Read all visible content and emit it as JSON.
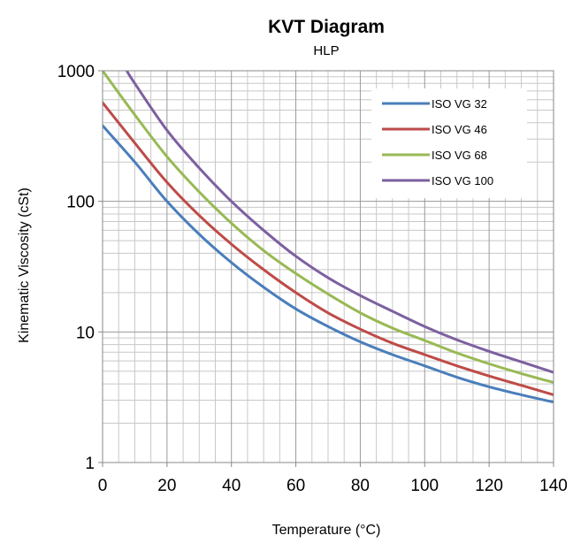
{
  "chart_data": {
    "type": "line",
    "title": "KVT Diagram",
    "subtitle": "HLP",
    "xlabel": "Temperature (°C)",
    "ylabel": "Kinematic Viscosity  (cSt)",
    "xlim": [
      0,
      140
    ],
    "ylim": [
      1,
      1000
    ],
    "yscale": "log",
    "x_ticks": [
      0,
      20,
      40,
      60,
      80,
      100,
      120,
      140
    ],
    "y_ticks": [
      1,
      10,
      100,
      1000
    ],
    "x_tick_labels": [
      "0",
      "20",
      "40",
      "60",
      "80",
      "100",
      "120",
      "140"
    ],
    "y_tick_labels": [
      "1",
      "10",
      "100",
      "1000"
    ],
    "grid": true,
    "legend_position": "top-right",
    "series": [
      {
        "name": "ISO VG 32",
        "color": "#4a7ebb",
        "x": [
          0,
          10,
          20,
          30,
          40,
          50,
          60,
          70,
          80,
          90,
          100,
          110,
          120,
          130,
          140
        ],
        "y": [
          380,
          200,
          100,
          56,
          34,
          22,
          15,
          11,
          8.4,
          6.7,
          5.5,
          4.5,
          3.8,
          3.3,
          2.9
        ]
      },
      {
        "name": "ISO VG 46",
        "color": "#be4b48",
        "x": [
          0,
          10,
          20,
          30,
          40,
          50,
          60,
          70,
          80,
          90,
          100,
          110,
          120,
          130,
          140
        ],
        "y": [
          570,
          280,
          140,
          78,
          47,
          30,
          20,
          14,
          10.5,
          8.2,
          6.7,
          5.5,
          4.6,
          3.9,
          3.3
        ]
      },
      {
        "name": "ISO VG 68",
        "color": "#98b954",
        "x": [
          0,
          10,
          20,
          30,
          40,
          50,
          60,
          70,
          80,
          90,
          100,
          110,
          120,
          130,
          140
        ],
        "y": [
          1000,
          460,
          220,
          118,
          68,
          42,
          28,
          19.5,
          14,
          10.7,
          8.6,
          6.9,
          5.7,
          4.8,
          4.1
        ]
      },
      {
        "name": "ISO VG 100",
        "color": "#7d60a0",
        "x": [
          7.5,
          10,
          20,
          30,
          40,
          50,
          60,
          70,
          80,
          90,
          100,
          110,
          120,
          130,
          140
        ],
        "y": [
          1000,
          800,
          350,
          180,
          100,
          60,
          38,
          26,
          19,
          14.4,
          11,
          8.7,
          7.1,
          5.9,
          4.9
        ]
      }
    ]
  }
}
